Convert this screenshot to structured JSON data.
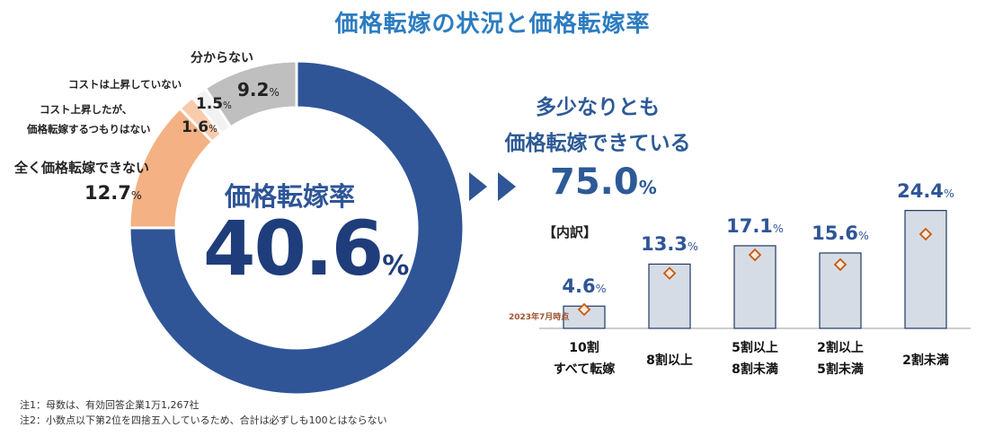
{
  "title": "価格転嫁の状況と価格転嫁率",
  "donut": {
    "center_title": "価格転嫁率",
    "center_value": "40.6",
    "center_unit": "%",
    "labels": {
      "wakaranai": "分からない",
      "wakaranai_value": "9.2",
      "cost_not_up": "コストは上昇していない",
      "cost_not_up_value": "1.5",
      "no_intent_1": "コスト上昇したが、",
      "no_intent_2": "価格転嫁するつもりはない",
      "no_intent_value": "1.6",
      "none": "全く価格転嫁できない",
      "none_value": "12.7",
      "unit": "%"
    }
  },
  "right": {
    "heading_1": "多少なりとも",
    "heading_2": "価格転嫁できている",
    "total_value": "75.0",
    "unit": "%",
    "breakdown_label": "【内訳】",
    "annotation": "2023年7月時点",
    "bar_values_text": [
      "4.6",
      "13.3",
      "17.1",
      "15.6",
      "24.4"
    ],
    "categories": [
      [
        "10割",
        "すべて転嫁"
      ],
      [
        "8割以上"
      ],
      [
        "5割以上",
        "8割未満"
      ],
      [
        "2割以上",
        "5割未満"
      ],
      [
        "2割未満"
      ]
    ]
  },
  "notes": {
    "note1": "注1：母数は、有効回答企業1万1,267社",
    "note2": "注2：小数点以下第2位を四捨五入しているため、合計は必ずしも100とはならない"
  },
  "colors": {
    "accent": "#2d7cc0",
    "donut_main": "#2f5597",
    "donut_none": "#f4b183",
    "donut_no_intent": "#f8cbad",
    "donut_not_up": "#f2f2f2",
    "donut_unknown": "#bfbfbf",
    "bar_fill": "#d6dce5",
    "bar_stroke": "#1f3864",
    "marker": "#c55a11"
  },
  "chart_data": [
    {
      "type": "pie",
      "title": "",
      "categories": [
        "多少なりとも価格転嫁できている",
        "全く価格転嫁できない",
        "コスト上昇したが、価格転嫁するつもりはない",
        "コストは上昇していない",
        "分からない"
      ],
      "values": [
        75.0,
        12.7,
        1.6,
        1.5,
        9.2
      ]
    },
    {
      "type": "bar",
      "title": "【内訳】",
      "categories": [
        "10割 すべて転嫁",
        "8割以上",
        "5割以上 8割未満",
        "2割以上 5割未満",
        "2割未満"
      ],
      "series": [
        {
          "values": [
            4.6,
            13.3,
            17.1,
            15.6,
            24.4
          ]
        },
        {
          "name": "2023年7月時点",
          "values": [
            3.9,
            11.4,
            15.2,
            13.2,
            19.5
          ]
        }
      ],
      "ylim": [
        0,
        26
      ]
    }
  ]
}
